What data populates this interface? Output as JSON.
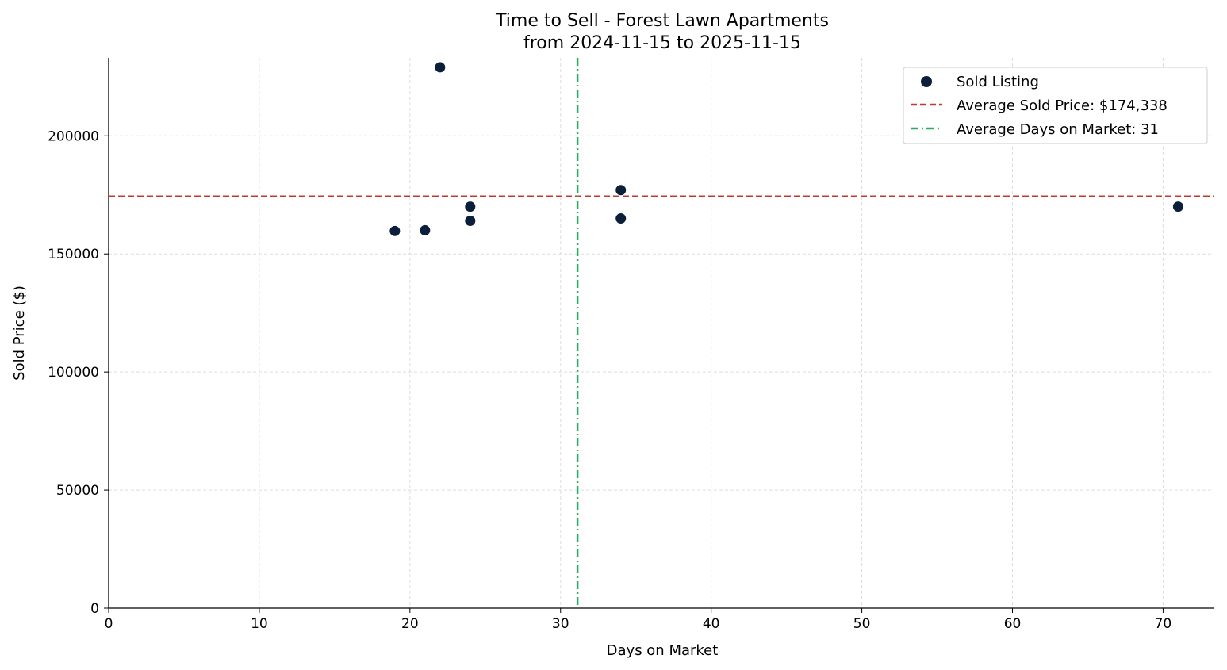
{
  "chart_data": {
    "type": "scatter",
    "title": "Time to Sell - Forest Lawn Apartments",
    "subtitle": "from 2024-11-15 to 2025-11-15",
    "xlabel": "Days on Market",
    "ylabel": "Sold Price ($)",
    "xlim": [
      0,
      73.4
    ],
    "ylim": [
      0,
      233000
    ],
    "xticks": [
      0,
      10,
      20,
      30,
      40,
      50,
      60,
      70
    ],
    "yticks": [
      0,
      50000,
      100000,
      150000,
      200000
    ],
    "grid": true,
    "legend_position": "top-right",
    "series": [
      {
        "name": "Sold Listing",
        "color": "#0b1f3a",
        "points": [
          [
            19,
            159700
          ],
          [
            21,
            160000
          ],
          [
            22,
            229000
          ],
          [
            24,
            170000
          ],
          [
            24,
            164000
          ],
          [
            34,
            177000
          ],
          [
            34,
            165000
          ],
          [
            71,
            170000
          ]
        ]
      }
    ],
    "reference_lines": [
      {
        "name": "Average Sold Price: $174,338",
        "orientation": "horizontal",
        "value": 174338,
        "color": "#c0392b",
        "style": "dashed"
      },
      {
        "name": "Average Days on Market: 31",
        "orientation": "vertical",
        "value": 31.125,
        "color": "#27ae60",
        "style": "dashdot"
      }
    ]
  }
}
